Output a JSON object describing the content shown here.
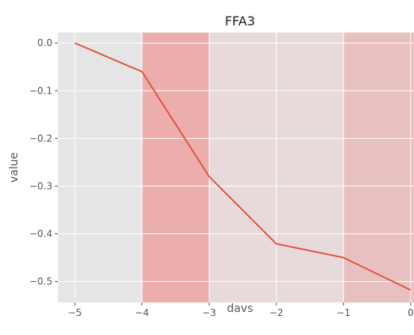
{
  "chart_data": {
    "type": "line",
    "title": "FFA3",
    "xlabel": "davs",
    "ylabel": "value",
    "xlim": [
      -5.25,
      0.05
    ],
    "ylim": [
      -0.544,
      0.022
    ],
    "x_ticks": [
      -5,
      -4,
      -3,
      -2,
      -1,
      0
    ],
    "x_tick_labels": [
      "−5",
      "−4",
      "−3",
      "−2",
      "−1",
      "0"
    ],
    "y_ticks": [
      0.0,
      -0.1,
      -0.2,
      -0.3,
      -0.4,
      -0.5
    ],
    "y_tick_labels": [
      "0.0",
      "−0.1",
      "−0.2",
      "−0.3",
      "−0.4",
      "−0.5"
    ],
    "grid": true,
    "series": [
      {
        "x": [
          -5,
          -4,
          -3,
          -2,
          -1,
          0
        ],
        "y": [
          0.0,
          -0.06,
          -0.28,
          -0.421,
          -0.45,
          -0.518
        ],
        "color": "#e24a33"
      }
    ],
    "shaded_spans": [
      {
        "x0": -5.25,
        "x1": -4,
        "color": "#e5e5e5"
      },
      {
        "x0": -4,
        "x1": -3,
        "color": "#ecadad"
      },
      {
        "x0": -3,
        "x1": -1,
        "color": "#e7dada"
      },
      {
        "x0": -1,
        "x1": 0.05,
        "color": "#e8c0c0"
      }
    ],
    "colors": {
      "axes_bg": "#e5e5e5",
      "grid": "#ffffff",
      "line": "#e24a33",
      "text": "#555555"
    }
  }
}
